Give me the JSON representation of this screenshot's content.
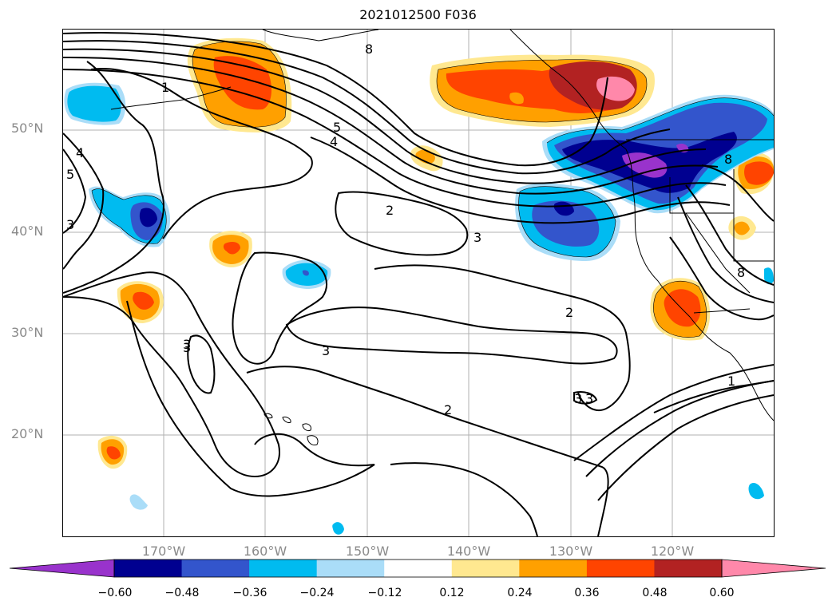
{
  "title": "2021012500 F036",
  "lat_labels": [
    "50°N",
    "40°N",
    "30°N",
    "20°N"
  ],
  "lon_labels": [
    "170°W",
    "160°W",
    "150°W",
    "140°W",
    "130°W",
    "120°W"
  ],
  "colorbar": {
    "ticks": [
      "−0.60",
      "−0.48",
      "−0.36",
      "−0.24",
      "−0.12",
      "0.12",
      "0.24",
      "0.36",
      "0.48",
      "0.60"
    ],
    "colors": [
      "#9933cc",
      "#000090",
      "#3355cc",
      "#00bbf0",
      "#aaddf8",
      "#ffffff",
      "#ffe890",
      "#ffa000",
      "#ff4400",
      "#b22222",
      "#ff88aa"
    ]
  },
  "contour_labels": [
    "1",
    "2",
    "2",
    "2",
    "3",
    "3",
    "3",
    "3",
    "3",
    "4",
    "4",
    "5",
    "5",
    "8",
    "8",
    "8",
    "1",
    "3",
    "3"
  ],
  "anomaly_colors": {
    "purple": "#9933cc",
    "navy": "#000090",
    "blue": "#3355cc",
    "cyan": "#00bbf0",
    "lightblue": "#aaddf8",
    "yellow": "#ffe890",
    "orange": "#ffa000",
    "redorange": "#ff4400",
    "firebrick": "#b22222",
    "pink": "#ff88aa"
  }
}
